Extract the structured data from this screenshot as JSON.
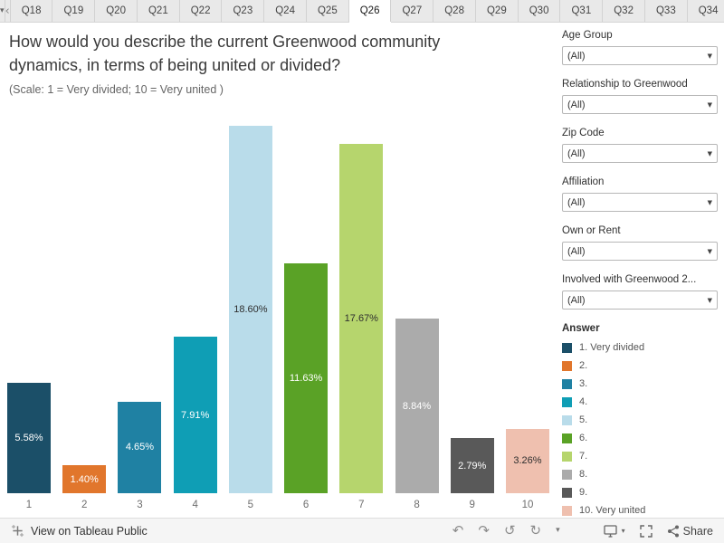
{
  "tabs": {
    "items": [
      "Q18",
      "Q19",
      "Q20",
      "Q21",
      "Q22",
      "Q23",
      "Q24",
      "Q25",
      "Q26",
      "Q27",
      "Q28",
      "Q29",
      "Q30",
      "Q31",
      "Q32",
      "Q33",
      "Q34"
    ],
    "active": "Q26"
  },
  "ui": {
    "menu_caret": "▾",
    "scroll_left": "‹",
    "dropdown_caret": "▼"
  },
  "chart_data": {
    "type": "bar",
    "title": "How would you describe the current Greenwood community dynamics, in terms of being united or divided?",
    "subtitle": "(Scale: 1 = Very divided; 10 = Very united )",
    "categories": [
      "1",
      "2",
      "3",
      "4",
      "5",
      "6",
      "7",
      "8",
      "9",
      "10"
    ],
    "values": [
      5.58,
      1.4,
      4.65,
      7.91,
      18.6,
      11.63,
      17.67,
      8.84,
      2.79,
      3.26
    ],
    "labels": [
      "5.58%",
      "1.40%",
      "4.65%",
      "7.91%",
      "18.60%",
      "11.63%",
      "17.67%",
      "8.84%",
      "2.79%",
      "3.26%"
    ],
    "colors": [
      "#1b4f68",
      "#e1762c",
      "#1f81a3",
      "#0f9eb5",
      "#b9dcea",
      "#5aa226",
      "#b6d56d",
      "#ababab",
      "#595959",
      "#efc0af"
    ],
    "label_colors": [
      "#ffffff",
      "#ffffff",
      "#ffffff",
      "#ffffff",
      "#2f2f2f",
      "#ffffff",
      "#2f2f2f",
      "#ffffff",
      "#ffffff",
      "#2f2f2f"
    ],
    "xlabel": "",
    "ylabel": "",
    "ylim": [
      0,
      18.6
    ],
    "grid": false,
    "legend_position": "right"
  },
  "filters": {
    "items": [
      {
        "label": "Age Group",
        "value": "(All)"
      },
      {
        "label": "Relationship to Greenwood",
        "value": "(All)"
      },
      {
        "label": "Zip Code",
        "value": "(All)"
      },
      {
        "label": "Affiliation",
        "value": "(All)"
      },
      {
        "label": "Own or Rent",
        "value": "(All)"
      },
      {
        "label": "Involved with Greenwood 2...",
        "value": "(All)"
      }
    ]
  },
  "legend": {
    "title": "Answer",
    "items": [
      {
        "label": "1. Very divided",
        "color": "#1b4f68"
      },
      {
        "label": "2.",
        "color": "#e1762c"
      },
      {
        "label": "3.",
        "color": "#1f81a3"
      },
      {
        "label": "4.",
        "color": "#0f9eb5"
      },
      {
        "label": "5.",
        "color": "#b9dcea"
      },
      {
        "label": "6.",
        "color": "#5aa226"
      },
      {
        "label": "7.",
        "color": "#b6d56d"
      },
      {
        "label": "8.",
        "color": "#ababab"
      },
      {
        "label": "9.",
        "color": "#595959"
      },
      {
        "label": "10. Very united",
        "color": "#efc0af"
      }
    ]
  },
  "footer": {
    "view_label": "View on Tableau Public",
    "share_label": "Share",
    "icons": [
      {
        "name": "undo-icon",
        "glyph": "↶"
      },
      {
        "name": "redo-icon",
        "glyph": "↷"
      },
      {
        "name": "reset-icon",
        "glyph": "↺"
      },
      {
        "name": "refresh-icon",
        "glyph": "↻"
      },
      {
        "name": "chevron-down-icon",
        "glyph": "▾"
      }
    ]
  }
}
